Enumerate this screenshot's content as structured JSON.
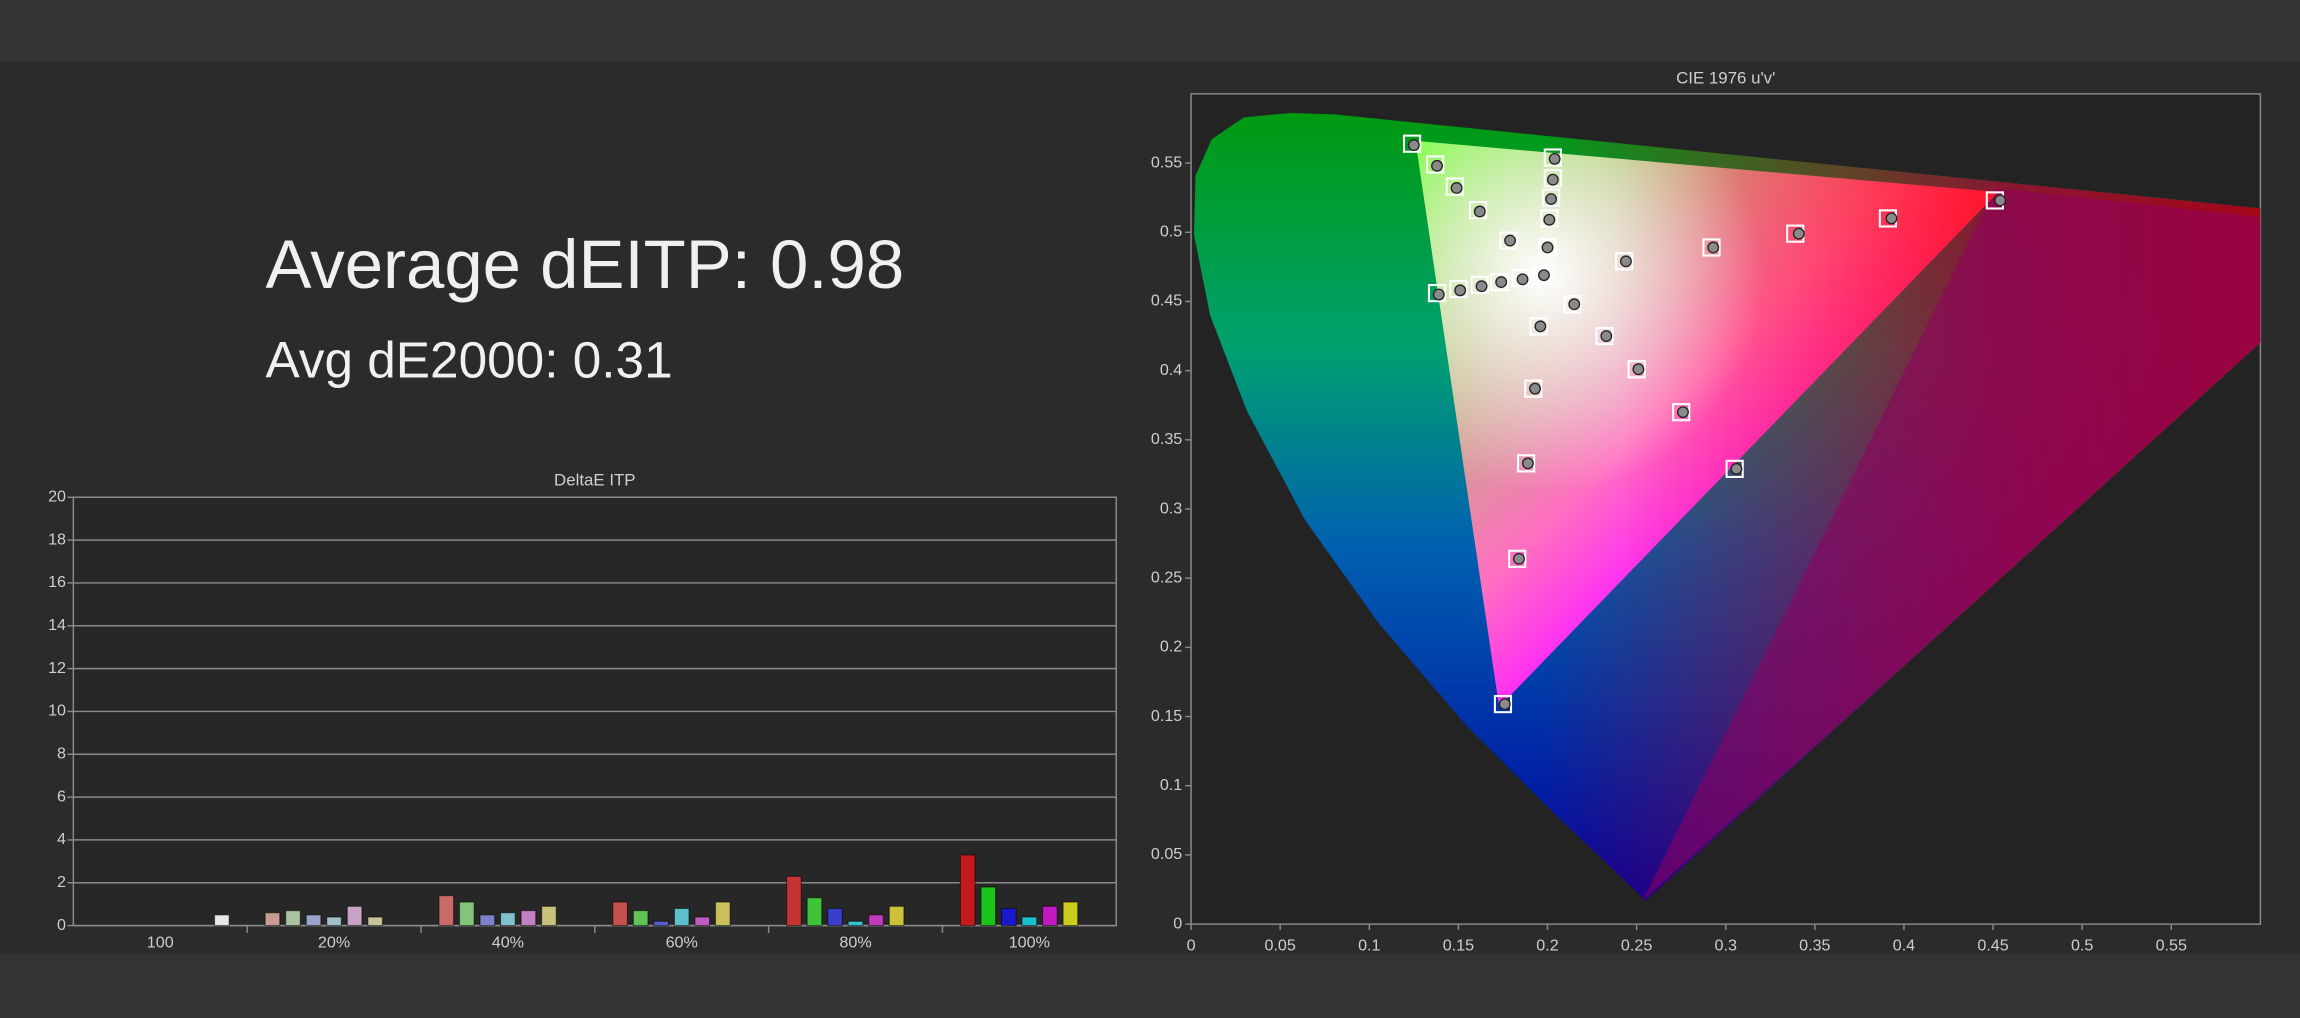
{
  "summary": {
    "average_deitp": "Average dEITP: 0.98",
    "avg_de2000": "Avg dE2000: 0.31"
  },
  "chart_data": [
    {
      "type": "bar",
      "title": "DeltaE ITP",
      "categories": [
        "100",
        "20%",
        "40%",
        "60%",
        "80%",
        "100%"
      ],
      "ylim": [
        0,
        20
      ],
      "yticks": [
        0,
        2,
        4,
        6,
        8,
        10,
        12,
        14,
        16,
        18,
        20
      ],
      "grid": true,
      "series": [
        {
          "colors": [
            null,
            "#c99a93",
            "#c86a66",
            "#c5504c",
            "#c43432",
            "#c41a1a"
          ],
          "values": [
            null,
            0.6,
            1.4,
            1.1,
            2.3,
            3.3
          ]
        },
        {
          "colors": [
            null,
            "#a9c4a0",
            "#82c47a",
            "#5fc356",
            "#3ec438",
            "#1ac41a"
          ],
          "values": [
            null,
            0.7,
            1.1,
            0.7,
            1.3,
            1.8
          ]
        },
        {
          "colors": [
            null,
            "#9aa3c9",
            "#7b82c9",
            "#5a5fc9",
            "#3a3fca",
            "#1a1acc"
          ],
          "values": [
            null,
            0.5,
            0.5,
            0.2,
            0.8,
            0.8
          ]
        },
        {
          "colors": [
            null,
            "#9fc0c7",
            "#7fc1cc",
            "#5cc0cc",
            "#38c0cc",
            "#1ac0cc"
          ],
          "values": [
            null,
            0.4,
            0.6,
            0.8,
            0.2,
            0.4
          ]
        },
        {
          "colors": [
            null,
            "#c7a3c7",
            "#c27fc2",
            "#c05cbf",
            "#c03ac0",
            "#c01ac0"
          ],
          "values": [
            null,
            0.9,
            0.7,
            0.4,
            0.5,
            0.9
          ]
        },
        {
          "colors": [
            null,
            "#c9c29d",
            "#c9c07d",
            "#cbc05a",
            "#ccc23a",
            "#cccc1a"
          ],
          "values": [
            null,
            0.4,
            0.9,
            1.1,
            0.9,
            1.1
          ]
        },
        {
          "colors": [
            "#e8e8e8",
            null,
            null,
            null,
            null,
            null
          ],
          "values": [
            0.5,
            null,
            null,
            null,
            null,
            null
          ]
        }
      ]
    },
    {
      "type": "scatter",
      "title": "CIE 1976 u'v'",
      "xlim": [
        0,
        0.6
      ],
      "ylim": [
        0,
        0.6
      ],
      "xticks": [
        0,
        0.05,
        0.1,
        0.15,
        0.2,
        0.25,
        0.3,
        0.35,
        0.4,
        0.45,
        0.5,
        0.55
      ],
      "yticks": [
        0,
        0.05,
        0.1,
        0.15,
        0.2,
        0.25,
        0.3,
        0.35,
        0.4,
        0.45,
        0.5,
        0.55
      ],
      "grid": false,
      "series": [
        {
          "marker": "square",
          "color": "#ffffff",
          "x": [
            0.124,
            0.137,
            0.148,
            0.161,
            0.178,
            0.203,
            0.203,
            0.202,
            0.201,
            0.2,
            0.138,
            0.15,
            0.162,
            0.173,
            0.185,
            0.175,
            0.183,
            0.188,
            0.192,
            0.195,
            0.305,
            0.275,
            0.25,
            0.232,
            0.214,
            0.451,
            0.391,
            0.339,
            0.292,
            0.243,
            0.197
          ],
          "y": [
            0.564,
            0.549,
            0.533,
            0.516,
            0.494,
            0.554,
            0.539,
            0.525,
            0.51,
            0.489,
            0.456,
            0.459,
            0.462,
            0.464,
            0.467,
            0.159,
            0.264,
            0.333,
            0.387,
            0.432,
            0.329,
            0.37,
            0.401,
            0.425,
            0.448,
            0.523,
            0.51,
            0.499,
            0.489,
            0.479,
            0.469
          ]
        },
        {
          "marker": "circle",
          "color": "#8a8a8a",
          "x": [
            0.125,
            0.138,
            0.149,
            0.162,
            0.179,
            0.204,
            0.203,
            0.202,
            0.201,
            0.2,
            0.139,
            0.151,
            0.163,
            0.174,
            0.186,
            0.176,
            0.184,
            0.189,
            0.193,
            0.196,
            0.306,
            0.276,
            0.251,
            0.233,
            0.215,
            0.454,
            0.393,
            0.341,
            0.293,
            0.244,
            0.198
          ],
          "y": [
            0.563,
            0.548,
            0.532,
            0.515,
            0.494,
            0.553,
            0.538,
            0.524,
            0.509,
            0.489,
            0.455,
            0.458,
            0.461,
            0.464,
            0.466,
            0.159,
            0.264,
            0.333,
            0.387,
            0.432,
            0.329,
            0.37,
            0.401,
            0.425,
            0.448,
            0.523,
            0.51,
            0.499,
            0.489,
            0.479,
            0.469
          ]
        }
      ]
    }
  ]
}
